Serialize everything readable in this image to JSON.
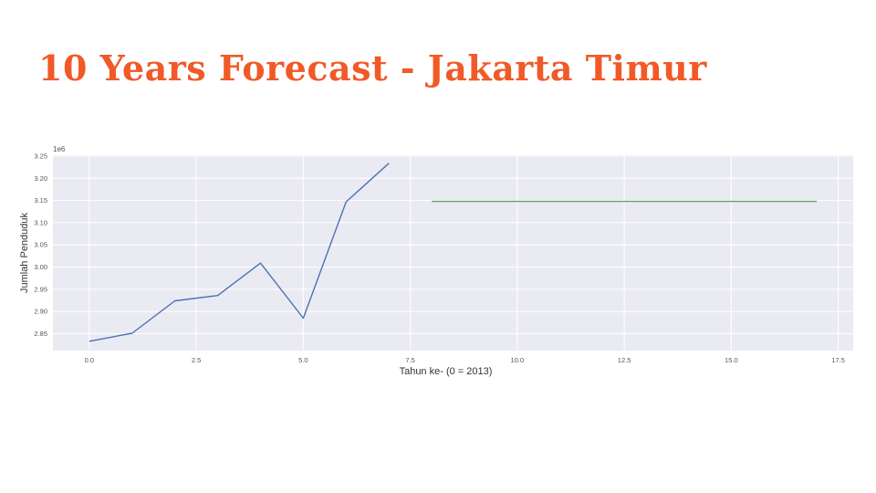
{
  "slide": {
    "title": "10 Years Forecast - Jakarta Timur",
    "title_color": "#f05a28"
  },
  "chart_data": {
    "type": "line",
    "title": "",
    "xlabel": "Tahun ke- (0 = 2013)",
    "ylabel": "Jumlah Penduduk",
    "y_offset_label": "1e6",
    "xlim": [
      -0.85,
      17.85
    ],
    "ylim": [
      2.812,
      3.252
    ],
    "x_ticks": [
      0.0,
      2.5,
      5.0,
      7.5,
      10.0,
      12.5,
      15.0,
      17.5
    ],
    "x_tick_labels": [
      "0.0",
      "2.5",
      "5.0",
      "7.5",
      "10.0",
      "12.5",
      "15.0",
      "17.5"
    ],
    "y_ticks": [
      2.85,
      2.9,
      2.95,
      3.0,
      3.05,
      3.1,
      3.15,
      3.2,
      3.25
    ],
    "y_tick_labels": [
      "2.85",
      "2.90",
      "2.95",
      "3.00",
      "3.05",
      "3.10",
      "3.15",
      "3.20",
      "3.25"
    ],
    "grid": true,
    "background": "#eaeaf2",
    "series": [
      {
        "color": "#4c72b0",
        "x": [
          0,
          1,
          2,
          3,
          4,
          5,
          6,
          7
        ],
        "y": [
          2.833,
          2.851,
          2.924,
          2.936,
          3.009,
          2.885,
          3.147,
          3.234
        ]
      },
      {
        "color": "#55a868",
        "x": [
          8,
          9,
          10,
          11,
          12,
          13,
          14,
          15,
          16,
          17
        ],
        "y": [
          3.148,
          3.148,
          3.148,
          3.148,
          3.148,
          3.148,
          3.148,
          3.148,
          3.148,
          3.148
        ]
      }
    ]
  }
}
